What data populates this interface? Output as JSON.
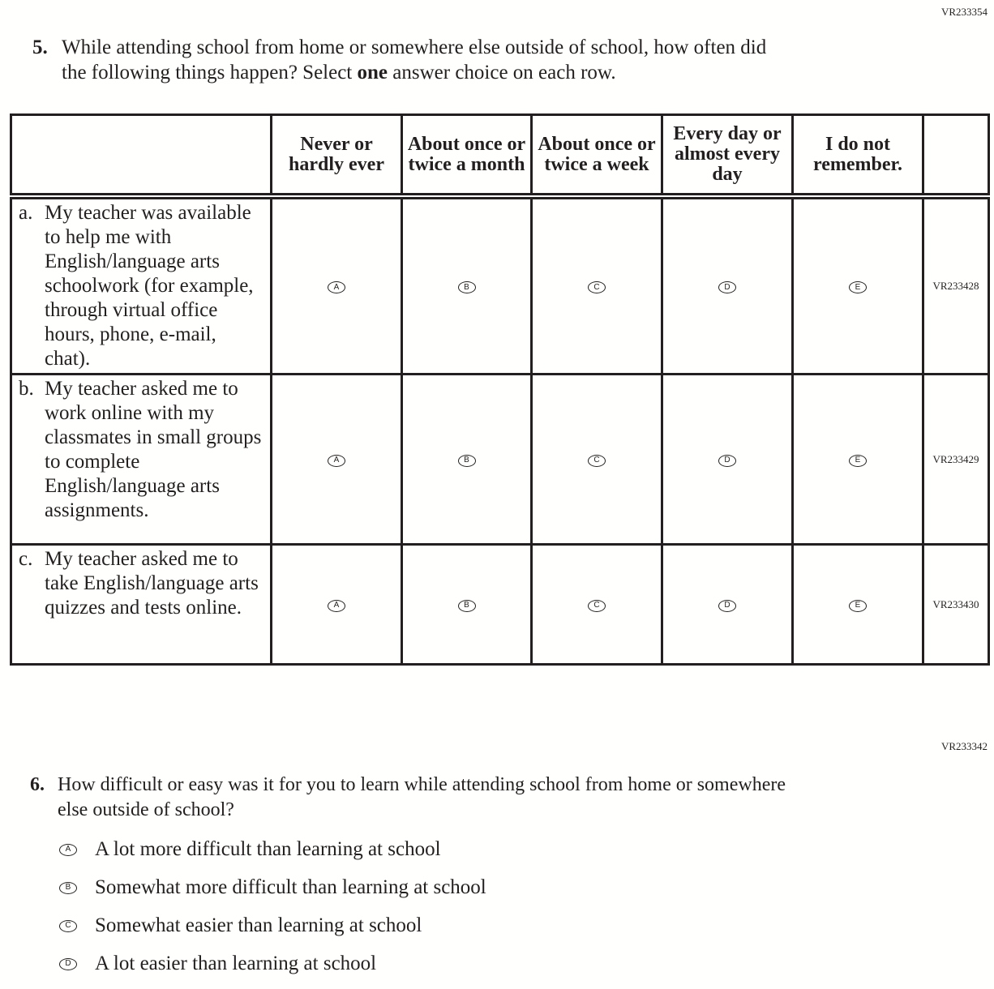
{
  "q5": {
    "code": "VR233354",
    "number": "5.",
    "text_line1": "While attending school from home or somewhere else outside of school, how often did",
    "text_line2_pre": "the following things happen? Select ",
    "text_line2_bold": "one",
    "text_line2_post": " answer choice on each row.",
    "columns": [
      "Never or hardly ever",
      "About once or twice a month",
      "About once or twice a week",
      "Every day or almost every day",
      "I do not remember."
    ],
    "bubbles": [
      "A",
      "B",
      "C",
      "D",
      "E"
    ],
    "rows": [
      {
        "letter": "a.",
        "text": "My teacher was available to help me with English/language arts schoolwork (for example, through virtual office hours, phone, e-mail, chat).",
        "code": "VR233428"
      },
      {
        "letter": "b.",
        "text": "My teacher asked me to work online with my classmates in small groups to complete English/language arts assignments.",
        "code": "VR233429"
      },
      {
        "letter": "c.",
        "text": "My teacher asked me to take English/language arts quizzes and tests online.",
        "code": "VR233430"
      }
    ]
  },
  "q6": {
    "code": "VR233342",
    "number": "6.",
    "text_line1": "How difficult or easy was it for you to learn while attending school from home or somewhere",
    "text_line2": "else outside of school?",
    "options": [
      {
        "bubble": "A",
        "label": "A lot more difficult than learning at school"
      },
      {
        "bubble": "B",
        "label": "Somewhat more difficult than learning at school"
      },
      {
        "bubble": "C",
        "label": "Somewhat easier than learning at school"
      },
      {
        "bubble": "D",
        "label": "A lot easier than learning at school"
      }
    ]
  }
}
